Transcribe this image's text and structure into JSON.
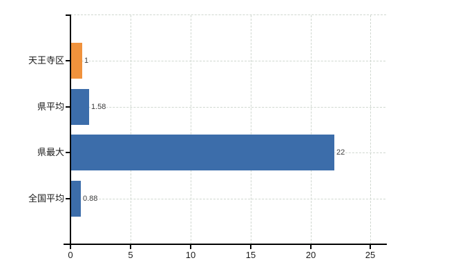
{
  "chart_data": {
    "type": "bar",
    "orientation": "horizontal",
    "title": "",
    "categories": [
      "天王寺区",
      "県平均",
      "県最大",
      "全国平均"
    ],
    "values": [
      1,
      1.58,
      22,
      0.88
    ],
    "value_labels": [
      "1",
      "1.58",
      "22",
      "0.88"
    ],
    "bar_colors": [
      "#F0923C",
      "#3C6DAA",
      "#3C6DAA",
      "#3C6DAA"
    ],
    "x_ticks": [
      0,
      5,
      10,
      15,
      20,
      25
    ],
    "x_tick_labels": [
      "0",
      "5",
      "10",
      "15",
      "20",
      "25"
    ],
    "xlim": [
      0,
      26.3
    ],
    "xlabel": "",
    "ylabel": "",
    "grid": true,
    "legend": false
  },
  "colors": {
    "background": "#ffffff",
    "axis": "#000000",
    "grid": "#cfd7cf",
    "category_text": "#1a1a1a",
    "value_text": "#3a3a3a",
    "tick_text": "#1a1a1a"
  }
}
